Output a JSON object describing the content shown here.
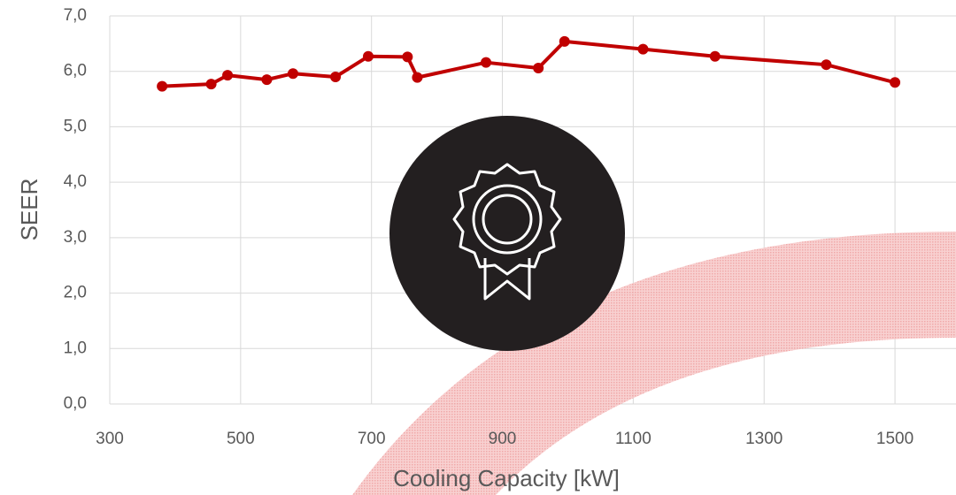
{
  "chart_data": {
    "type": "line",
    "x_label": "Cooling Capacity [kW]",
    "y_label": "SEER",
    "x": [
      380,
      455,
      480,
      540,
      580,
      645,
      695,
      755,
      770,
      875,
      955,
      995,
      1115,
      1225,
      1395,
      1500
    ],
    "series": [
      {
        "color": "#c00000",
        "values": [
          5.73,
          5.77,
          5.93,
          5.85,
          5.96,
          5.9,
          6.27,
          6.26,
          5.89,
          6.16,
          6.06,
          6.54,
          6.4,
          6.27,
          6.12,
          5.8
        ]
      }
    ],
    "xlim": [
      300,
      1600
    ],
    "xticks": [
      300,
      500,
      700,
      900,
      1100,
      1300,
      1500
    ],
    "ylim": [
      0,
      7
    ],
    "yticks": [
      {
        "value": 0,
        "label": "0,0"
      },
      {
        "value": 1,
        "label": "1,0"
      },
      {
        "value": 2,
        "label": "2,0"
      },
      {
        "value": 3,
        "label": "3,0"
      },
      {
        "value": 4,
        "label": "4,0"
      },
      {
        "value": 5,
        "label": "5,0"
      },
      {
        "value": 6,
        "label": "6,0"
      },
      {
        "value": 7,
        "label": "7,0"
      }
    ],
    "grid": true
  }
}
